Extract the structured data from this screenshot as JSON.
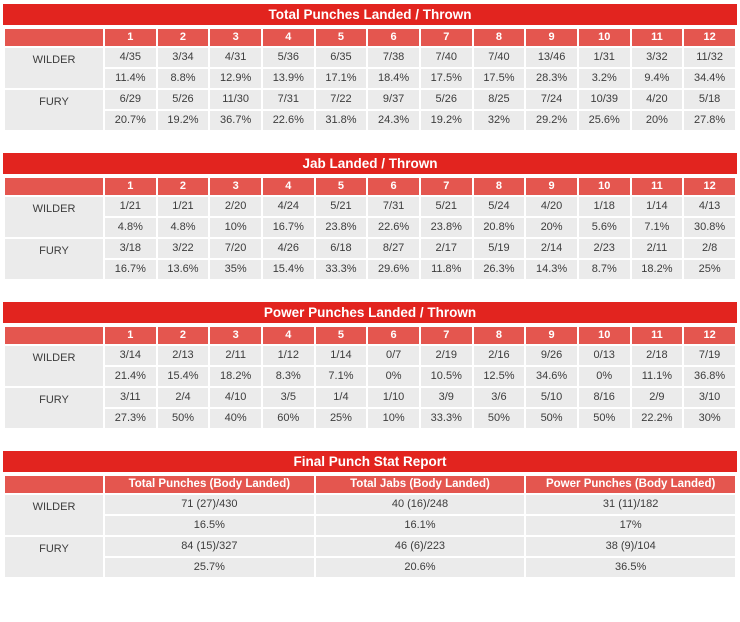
{
  "colors": {
    "title_bar_red": "#e2241f",
    "header_red": "#e4564f",
    "cell_gray": "#ebebeb",
    "text_dark": "#3c3c3c",
    "header_text": "#ffffff"
  },
  "fighters": [
    "WILDER",
    "FURY"
  ],
  "chart_data": [
    {
      "type": "table",
      "title": "Total Punches Landed / Thrown",
      "columns": [
        "1",
        "2",
        "3",
        "4",
        "5",
        "6",
        "7",
        "8",
        "9",
        "10",
        "11",
        "12"
      ],
      "rows": [
        {
          "fighter": "WILDER",
          "values": [
            "4/35",
            "3/34",
            "4/31",
            "5/36",
            "6/35",
            "7/38",
            "7/40",
            "7/40",
            "13/46",
            "1/31",
            "3/32",
            "11/32"
          ],
          "percentages": [
            "11.4%",
            "8.8%",
            "12.9%",
            "13.9%",
            "17.1%",
            "18.4%",
            "17.5%",
            "17.5%",
            "28.3%",
            "3.2%",
            "9.4%",
            "34.4%"
          ]
        },
        {
          "fighter": "FURY",
          "values": [
            "6/29",
            "5/26",
            "11/30",
            "7/31",
            "7/22",
            "9/37",
            "5/26",
            "8/25",
            "7/24",
            "10/39",
            "4/20",
            "5/18"
          ],
          "percentages": [
            "20.7%",
            "19.2%",
            "36.7%",
            "22.6%",
            "31.8%",
            "24.3%",
            "19.2%",
            "32%",
            "29.2%",
            "25.6%",
            "20%",
            "27.8%"
          ]
        }
      ]
    },
    {
      "type": "table",
      "title": "Jab Landed / Thrown",
      "columns": [
        "1",
        "2",
        "3",
        "4",
        "5",
        "6",
        "7",
        "8",
        "9",
        "10",
        "11",
        "12"
      ],
      "rows": [
        {
          "fighter": "WILDER",
          "values": [
            "1/21",
            "1/21",
            "2/20",
            "4/24",
            "5/21",
            "7/31",
            "5/21",
            "5/24",
            "4/20",
            "1/18",
            "1/14",
            "4/13"
          ],
          "percentages": [
            "4.8%",
            "4.8%",
            "10%",
            "16.7%",
            "23.8%",
            "22.6%",
            "23.8%",
            "20.8%",
            "20%",
            "5.6%",
            "7.1%",
            "30.8%"
          ]
        },
        {
          "fighter": "FURY",
          "values": [
            "3/18",
            "3/22",
            "7/20",
            "4/26",
            "6/18",
            "8/27",
            "2/17",
            "5/19",
            "2/14",
            "2/23",
            "2/11",
            "2/8"
          ],
          "percentages": [
            "16.7%",
            "13.6%",
            "35%",
            "15.4%",
            "33.3%",
            "29.6%",
            "11.8%",
            "26.3%",
            "14.3%",
            "8.7%",
            "18.2%",
            "25%"
          ]
        }
      ]
    },
    {
      "type": "table",
      "title": "Power Punches Landed / Thrown",
      "columns": [
        "1",
        "2",
        "3",
        "4",
        "5",
        "6",
        "7",
        "8",
        "9",
        "10",
        "11",
        "12"
      ],
      "rows": [
        {
          "fighter": "WILDER",
          "values": [
            "3/14",
            "2/13",
            "2/11",
            "1/12",
            "1/14",
            "0/7",
            "2/19",
            "2/16",
            "9/26",
            "0/13",
            "2/18",
            "7/19"
          ],
          "percentages": [
            "21.4%",
            "15.4%",
            "18.2%",
            "8.3%",
            "7.1%",
            "0%",
            "10.5%",
            "12.5%",
            "34.6%",
            "0%",
            "11.1%",
            "36.8%"
          ]
        },
        {
          "fighter": "FURY",
          "values": [
            "3/11",
            "2/4",
            "4/10",
            "3/5",
            "1/4",
            "1/10",
            "3/9",
            "3/6",
            "5/10",
            "8/16",
            "2/9",
            "3/10"
          ],
          "percentages": [
            "27.3%",
            "50%",
            "40%",
            "60%",
            "25%",
            "10%",
            "33.3%",
            "50%",
            "50%",
            "50%",
            "22.2%",
            "30%"
          ]
        }
      ]
    },
    {
      "type": "table",
      "title": "Final Punch Stat Report",
      "columns": [
        "Total Punches (Body Landed)",
        "Total Jabs (Body Landed)",
        "Power Punches (Body Landed)"
      ],
      "rows": [
        {
          "fighter": "WILDER",
          "values": [
            "71 (27)/430",
            "40 (16)/248",
            "31 (11)/182"
          ],
          "percentages": [
            "16.5%",
            "16.1%",
            "17%"
          ]
        },
        {
          "fighter": "FURY",
          "values": [
            "84 (15)/327",
            "46 (6)/223",
            "38 (9)/104"
          ],
          "percentages": [
            "25.7%",
            "20.6%",
            "36.5%"
          ]
        }
      ]
    }
  ]
}
